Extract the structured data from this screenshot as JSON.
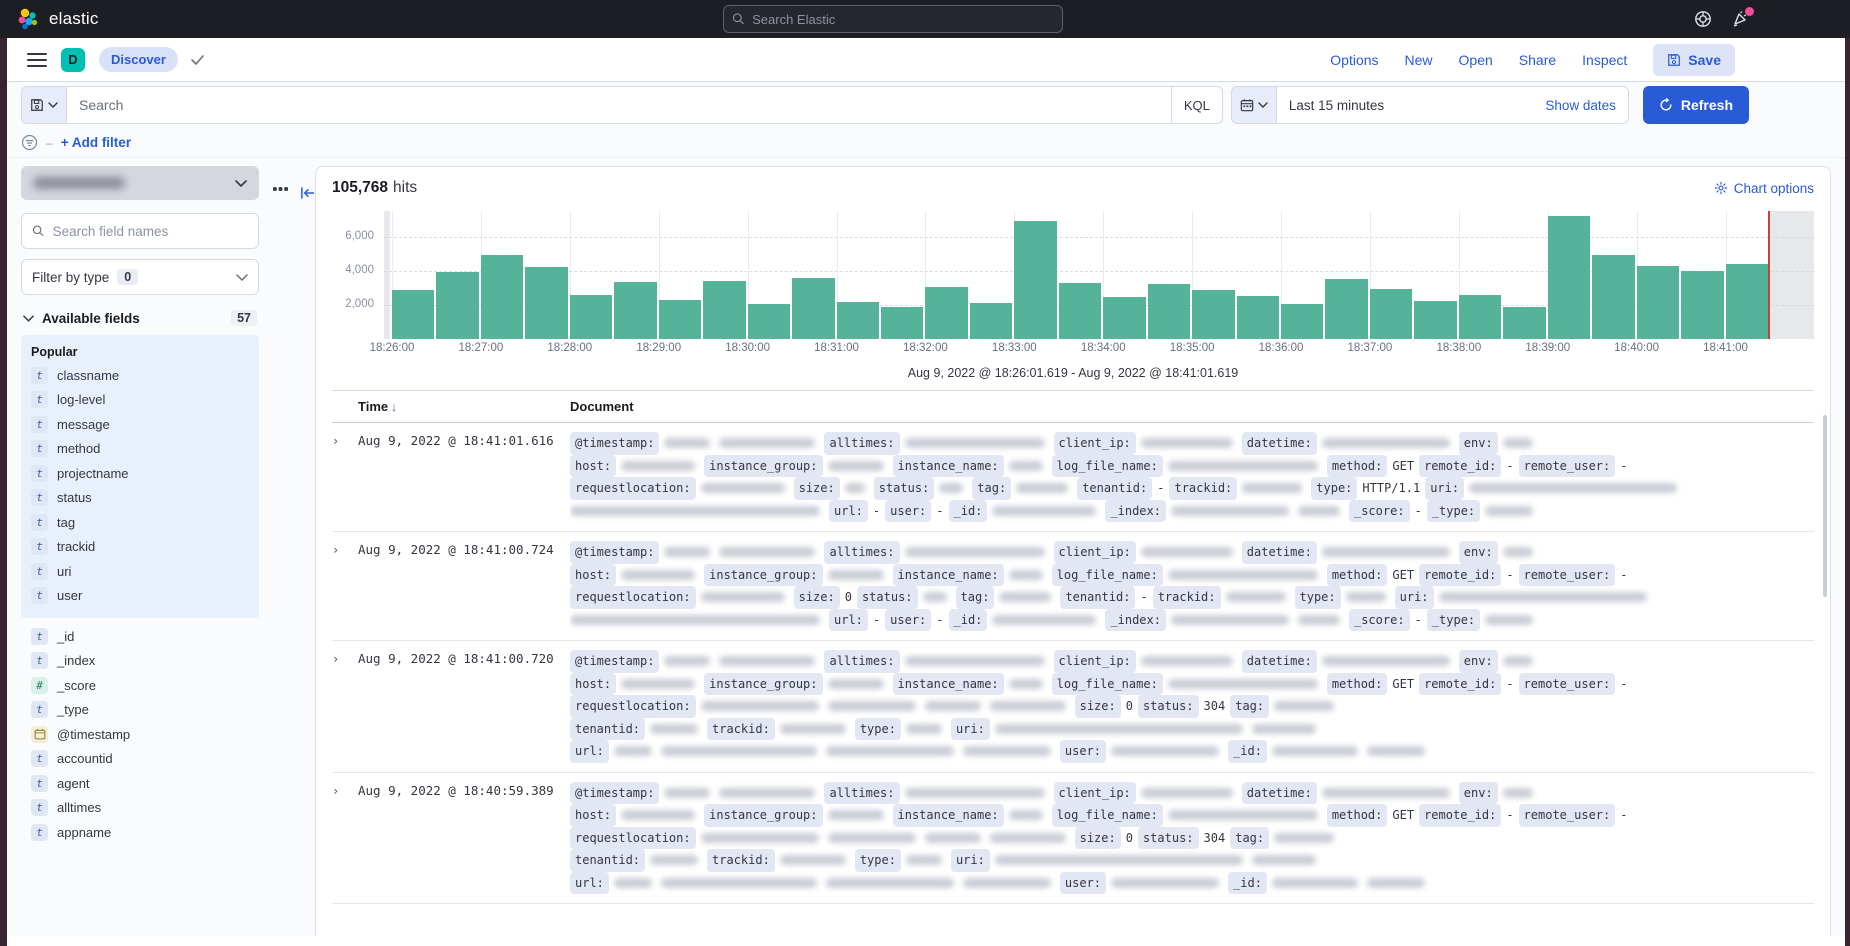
{
  "topbar": {
    "brand": "elastic",
    "search_placeholder": "Search Elastic"
  },
  "navbar": {
    "space_initial": "D",
    "breadcrumb": "Discover",
    "links": [
      "Options",
      "New",
      "Open",
      "Share",
      "Inspect"
    ],
    "save_label": "Save"
  },
  "querybar": {
    "search_placeholder": "Search",
    "kql_label": "KQL",
    "time_value": "Last 15 minutes",
    "show_dates_label": "Show dates",
    "refresh_label": "Refresh"
  },
  "filterbar": {
    "add_filter_label": "+ Add filter"
  },
  "sidebar": {
    "search_placeholder": "Search field names",
    "filter_by_type": {
      "label": "Filter by type",
      "count": "0"
    },
    "available_fields": {
      "label": "Available fields",
      "count": "57"
    },
    "popular_label": "Popular",
    "popular_fields": [
      {
        "type": "t",
        "name": "classname"
      },
      {
        "type": "t",
        "name": "log-level"
      },
      {
        "type": "t",
        "name": "message"
      },
      {
        "type": "t",
        "name": "method"
      },
      {
        "type": "t",
        "name": "projectname"
      },
      {
        "type": "t",
        "name": "status"
      },
      {
        "type": "t",
        "name": "tag"
      },
      {
        "type": "t",
        "name": "trackid"
      },
      {
        "type": "t",
        "name": "uri"
      },
      {
        "type": "t",
        "name": "user"
      }
    ],
    "other_fields": [
      {
        "type": "t",
        "name": "_id"
      },
      {
        "type": "t",
        "name": "_index"
      },
      {
        "type": "#",
        "name": "_score"
      },
      {
        "type": "t",
        "name": "_type"
      },
      {
        "type": "date",
        "name": "@timestamp"
      },
      {
        "type": "t",
        "name": "accountid"
      },
      {
        "type": "t",
        "name": "agent"
      },
      {
        "type": "t",
        "name": "alltimes"
      },
      {
        "type": "t",
        "name": "appname"
      }
    ]
  },
  "results": {
    "hits_value": "105,768",
    "hits_label": "hits",
    "chart_options_label": "Chart options"
  },
  "chart_data": {
    "type": "bar",
    "title": "Histogram of document count over time",
    "bucket_interval": "30 seconds",
    "x_ticks": [
      "18:26:00",
      "18:27:00",
      "18:28:00",
      "18:29:00",
      "18:30:00",
      "18:31:00",
      "18:32:00",
      "18:33:00",
      "18:34:00",
      "18:35:00",
      "18:36:00",
      "18:37:00",
      "18:38:00",
      "18:39:00",
      "18:40:00",
      "18:41:00"
    ],
    "values": [
      2900,
      3900,
      4950,
      4200,
      2600,
      3350,
      2300,
      3400,
      2050,
      3600,
      2150,
      1900,
      3050,
      2100,
      6900,
      3300,
      2450,
      3250,
      2850,
      2500,
      2050,
      3500,
      2950,
      2250,
      2600,
      1900,
      7200,
      4900,
      4300,
      4000,
      4400
    ],
    "y_ticks": [
      2000,
      4000,
      6000
    ],
    "y_tick_labels": [
      "2,000",
      "4,000",
      "6,000"
    ],
    "ylim": [
      0,
      7500
    ],
    "grid": true,
    "legend": false,
    "bar_color": "#54b399",
    "partial_bucket_color": "#d3d6dd",
    "current_time_marker_color": "#c84138",
    "time_range_summary": "Aug 9, 2022 @ 18:26:01.619 - Aug 9, 2022 @ 18:41:01.619"
  },
  "table": {
    "columns": [
      "Time",
      "Document"
    ],
    "rows": [
      {
        "time": "Aug 9, 2022 @ 18:41:01.616",
        "lines": [
          [
            [
              "f",
              "@timestamp:"
            ],
            [
              "b",
              46
            ],
            [
              "b",
              96
            ],
            [
              "f",
              "alltimes:"
            ],
            [
              "b",
              140
            ],
            [
              "f",
              "client_ip:"
            ],
            [
              "b",
              92
            ],
            [
              "f",
              "datetime:"
            ],
            [
              "b",
              128
            ],
            [
              "f",
              "env:"
            ],
            [
              "b",
              30
            ]
          ],
          [
            [
              "f",
              "host:"
            ],
            [
              "b",
              74
            ],
            [
              "f",
              "instance_group:"
            ],
            [
              "b",
              56
            ],
            [
              "f",
              "instance_name:"
            ],
            [
              "b",
              34
            ],
            [
              "f",
              "log_file_name:"
            ],
            [
              "b",
              150
            ],
            [
              "f",
              "method:"
            ],
            [
              "t",
              "GET"
            ],
            [
              "f",
              "remote_id:"
            ],
            [
              "t",
              "-"
            ],
            [
              "f",
              "remote_user:"
            ],
            [
              "t",
              "-"
            ]
          ],
          [
            [
              "f",
              "requestlocation:"
            ],
            [
              "b",
              84
            ],
            [
              "f",
              "size:"
            ],
            [
              "b",
              20
            ],
            [
              "f",
              "status:"
            ],
            [
              "b",
              24
            ],
            [
              "f",
              "tag:"
            ],
            [
              "b",
              52
            ],
            [
              "f",
              "tenantid:"
            ],
            [
              "t",
              "-"
            ],
            [
              "f",
              "trackid:"
            ],
            [
              "b",
              60
            ],
            [
              "f",
              "type:"
            ],
            [
              "t",
              "HTTP/1.1"
            ],
            [
              "f",
              "uri:"
            ],
            [
              "b",
              208
            ]
          ],
          [
            [
              "b",
              250
            ],
            [
              "f",
              "url:"
            ],
            [
              "t",
              "-"
            ],
            [
              "f",
              "user:"
            ],
            [
              "t",
              "-"
            ],
            [
              "f",
              "_id:"
            ],
            [
              "b",
              104
            ],
            [
              "f",
              "_index:"
            ],
            [
              "b",
              118
            ],
            [
              "b",
              42
            ],
            [
              "f",
              "_score:"
            ],
            [
              "t",
              "-"
            ],
            [
              "f",
              "_type:"
            ],
            [
              "b",
              48
            ]
          ]
        ]
      },
      {
        "time": "Aug 9, 2022 @ 18:41:00.724",
        "lines": [
          [
            [
              "f",
              "@timestamp:"
            ],
            [
              "b",
              46
            ],
            [
              "b",
              96
            ],
            [
              "f",
              "alltimes:"
            ],
            [
              "b",
              140
            ],
            [
              "f",
              "client_ip:"
            ],
            [
              "b",
              92
            ],
            [
              "f",
              "datetime:"
            ],
            [
              "b",
              128
            ],
            [
              "f",
              "env:"
            ],
            [
              "b",
              30
            ]
          ],
          [
            [
              "f",
              "host:"
            ],
            [
              "b",
              74
            ],
            [
              "f",
              "instance_group:"
            ],
            [
              "b",
              56
            ],
            [
              "f",
              "instance_name:"
            ],
            [
              "b",
              34
            ],
            [
              "f",
              "log_file_name:"
            ],
            [
              "b",
              150
            ],
            [
              "f",
              "method:"
            ],
            [
              "t",
              "GET"
            ],
            [
              "f",
              "remote_id:"
            ],
            [
              "t",
              "-"
            ],
            [
              "f",
              "remote_user:"
            ],
            [
              "t",
              "-"
            ]
          ],
          [
            [
              "f",
              "requestlocation:"
            ],
            [
              "b",
              84
            ],
            [
              "f",
              "size:"
            ],
            [
              "t",
              "0"
            ],
            [
              "f",
              "status:"
            ],
            [
              "b",
              24
            ],
            [
              "f",
              "tag:"
            ],
            [
              "b",
              52
            ],
            [
              "f",
              "tenantid:"
            ],
            [
              "t",
              "-"
            ],
            [
              "f",
              "trackid:"
            ],
            [
              "b",
              60
            ],
            [
              "f",
              "type:"
            ],
            [
              "b",
              40
            ],
            [
              "f",
              "uri:"
            ],
            [
              "b",
              208
            ]
          ],
          [
            [
              "b",
              250
            ],
            [
              "f",
              "url:"
            ],
            [
              "t",
              "-"
            ],
            [
              "f",
              "user:"
            ],
            [
              "t",
              "-"
            ],
            [
              "f",
              "_id:"
            ],
            [
              "b",
              104
            ],
            [
              "f",
              "_index:"
            ],
            [
              "b",
              118
            ],
            [
              "b",
              42
            ],
            [
              "f",
              "_score:"
            ],
            [
              "t",
              "-"
            ],
            [
              "f",
              "_type:"
            ],
            [
              "b",
              48
            ]
          ]
        ]
      },
      {
        "time": "Aug 9, 2022 @ 18:41:00.720",
        "lines": [
          [
            [
              "f",
              "@timestamp:"
            ],
            [
              "b",
              46
            ],
            [
              "b",
              96
            ],
            [
              "f",
              "alltimes:"
            ],
            [
              "b",
              140
            ],
            [
              "f",
              "client_ip:"
            ],
            [
              "b",
              92
            ],
            [
              "f",
              "datetime:"
            ],
            [
              "b",
              128
            ],
            [
              "f",
              "env:"
            ],
            [
              "b",
              30
            ]
          ],
          [
            [
              "f",
              "host:"
            ],
            [
              "b",
              74
            ],
            [
              "f",
              "instance_group:"
            ],
            [
              "b",
              56
            ],
            [
              "f",
              "instance_name:"
            ],
            [
              "b",
              34
            ],
            [
              "f",
              "log_file_name:"
            ],
            [
              "b",
              150
            ],
            [
              "f",
              "method:"
            ],
            [
              "t",
              "GET"
            ],
            [
              "f",
              "remote_id:"
            ],
            [
              "t",
              "-"
            ],
            [
              "f",
              "remote_user:"
            ],
            [
              "t",
              "-"
            ]
          ],
          [
            [
              "f",
              "requestlocation:"
            ],
            [
              "b",
              118
            ],
            [
              "b",
              88
            ],
            [
              "b",
              56
            ],
            [
              "b",
              76
            ],
            [
              "f",
              "size:"
            ],
            [
              "t",
              "0"
            ],
            [
              "f",
              "status:"
            ],
            [
              "t",
              "304"
            ],
            [
              "f",
              "tag:"
            ],
            [
              "b",
              60
            ]
          ],
          [
            [
              "f",
              "tenantid:"
            ],
            [
              "b",
              48
            ],
            [
              "f",
              "trackid:"
            ],
            [
              "b",
              66
            ],
            [
              "f",
              "type:"
            ],
            [
              "b",
              36
            ],
            [
              "f",
              "uri:"
            ],
            [
              "b",
              248
            ],
            [
              "b",
              64
            ]
          ],
          [
            [
              "f",
              "url:"
            ],
            [
              "b",
              38
            ],
            [
              "b",
              156
            ],
            [
              "b",
              128
            ],
            [
              "b",
              88
            ],
            [
              "f",
              "user:"
            ],
            [
              "b",
              108
            ],
            [
              "f",
              "_id:"
            ],
            [
              "b",
              86
            ],
            [
              "b",
              58
            ]
          ]
        ]
      },
      {
        "time": "Aug 9, 2022 @ 18:40:59.389",
        "lines": [
          [
            [
              "f",
              "@timestamp:"
            ],
            [
              "b",
              46
            ],
            [
              "b",
              96
            ],
            [
              "f",
              "alltimes:"
            ],
            [
              "b",
              140
            ],
            [
              "f",
              "client_ip:"
            ],
            [
              "b",
              92
            ],
            [
              "f",
              "datetime:"
            ],
            [
              "b",
              128
            ],
            [
              "f",
              "env:"
            ],
            [
              "b",
              30
            ]
          ],
          [
            [
              "f",
              "host:"
            ],
            [
              "b",
              74
            ],
            [
              "f",
              "instance_group:"
            ],
            [
              "b",
              56
            ],
            [
              "f",
              "instance_name:"
            ],
            [
              "b",
              34
            ],
            [
              "f",
              "log_file_name:"
            ],
            [
              "b",
              150
            ],
            [
              "f",
              "method:"
            ],
            [
              "t",
              "GET"
            ],
            [
              "f",
              "remote_id:"
            ],
            [
              "t",
              "-"
            ],
            [
              "f",
              "remote_user:"
            ],
            [
              "t",
              "-"
            ]
          ],
          [
            [
              "f",
              "requestlocation:"
            ],
            [
              "b",
              118
            ],
            [
              "b",
              88
            ],
            [
              "b",
              56
            ],
            [
              "b",
              76
            ],
            [
              "f",
              "size:"
            ],
            [
              "t",
              "0"
            ],
            [
              "f",
              "status:"
            ],
            [
              "t",
              "304"
            ],
            [
              "f",
              "tag:"
            ],
            [
              "b",
              60
            ]
          ],
          [
            [
              "f",
              "tenantid:"
            ],
            [
              "b",
              48
            ],
            [
              "f",
              "trackid:"
            ],
            [
              "b",
              66
            ],
            [
              "f",
              "type:"
            ],
            [
              "b",
              36
            ],
            [
              "f",
              "uri:"
            ],
            [
              "b",
              248
            ],
            [
              "b",
              64
            ]
          ],
          [
            [
              "f",
              "url:"
            ],
            [
              "b",
              38
            ],
            [
              "b",
              156
            ],
            [
              "b",
              128
            ],
            [
              "b",
              88
            ],
            [
              "f",
              "user:"
            ],
            [
              "b",
              108
            ],
            [
              "f",
              "_id:"
            ],
            [
              "b",
              86
            ],
            [
              "b",
              58
            ]
          ]
        ]
      }
    ]
  },
  "colors": {
    "accent_blue": "#2a5bd7",
    "topbar_bg": "#1d1e24",
    "space_badge": "#00bfb3",
    "bar_green": "#54b399",
    "danger_red": "#c84138",
    "notification_pink": "#f04e98"
  }
}
